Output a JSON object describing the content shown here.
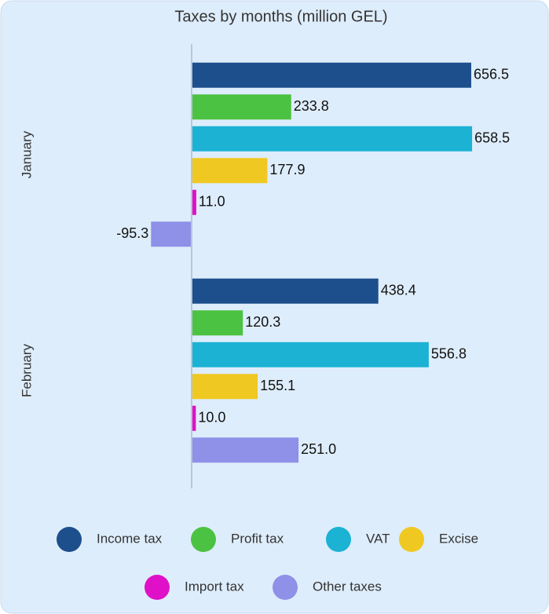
{
  "chart_data": {
    "type": "bar",
    "orientation": "horizontal",
    "title": "Taxes by months (million GEL)",
    "categories": [
      "January",
      "February"
    ],
    "xlim": [
      -200,
      800
    ],
    "series": [
      {
        "name": "Income tax",
        "color": "#1d4f8c",
        "values": [
          656.5,
          438.4
        ],
        "value_labels": [
          "656.5",
          "438.4"
        ]
      },
      {
        "name": "Profit tax",
        "color": "#4cc242",
        "values": [
          233.8,
          120.3
        ],
        "value_labels": [
          "233.8",
          "120.3"
        ]
      },
      {
        "name": "VAT",
        "color": "#1bb2d4",
        "values": [
          658.5,
          556.8
        ],
        "value_labels": [
          "658.5",
          "556.8"
        ]
      },
      {
        "name": "Excise",
        "color": "#f0c822",
        "values": [
          177.9,
          155.1
        ],
        "value_labels": [
          "177.9",
          "155.1"
        ]
      },
      {
        "name": "Import tax",
        "color": "#e010c8",
        "values": [
          11.0,
          10.0
        ],
        "value_labels": [
          "11.0",
          "10.0"
        ]
      },
      {
        "name": "Other taxes",
        "color": "#8f90e8",
        "values": [
          -95.3,
          251.0
        ],
        "value_labels": [
          "-95.3",
          "251.0"
        ]
      }
    ]
  }
}
